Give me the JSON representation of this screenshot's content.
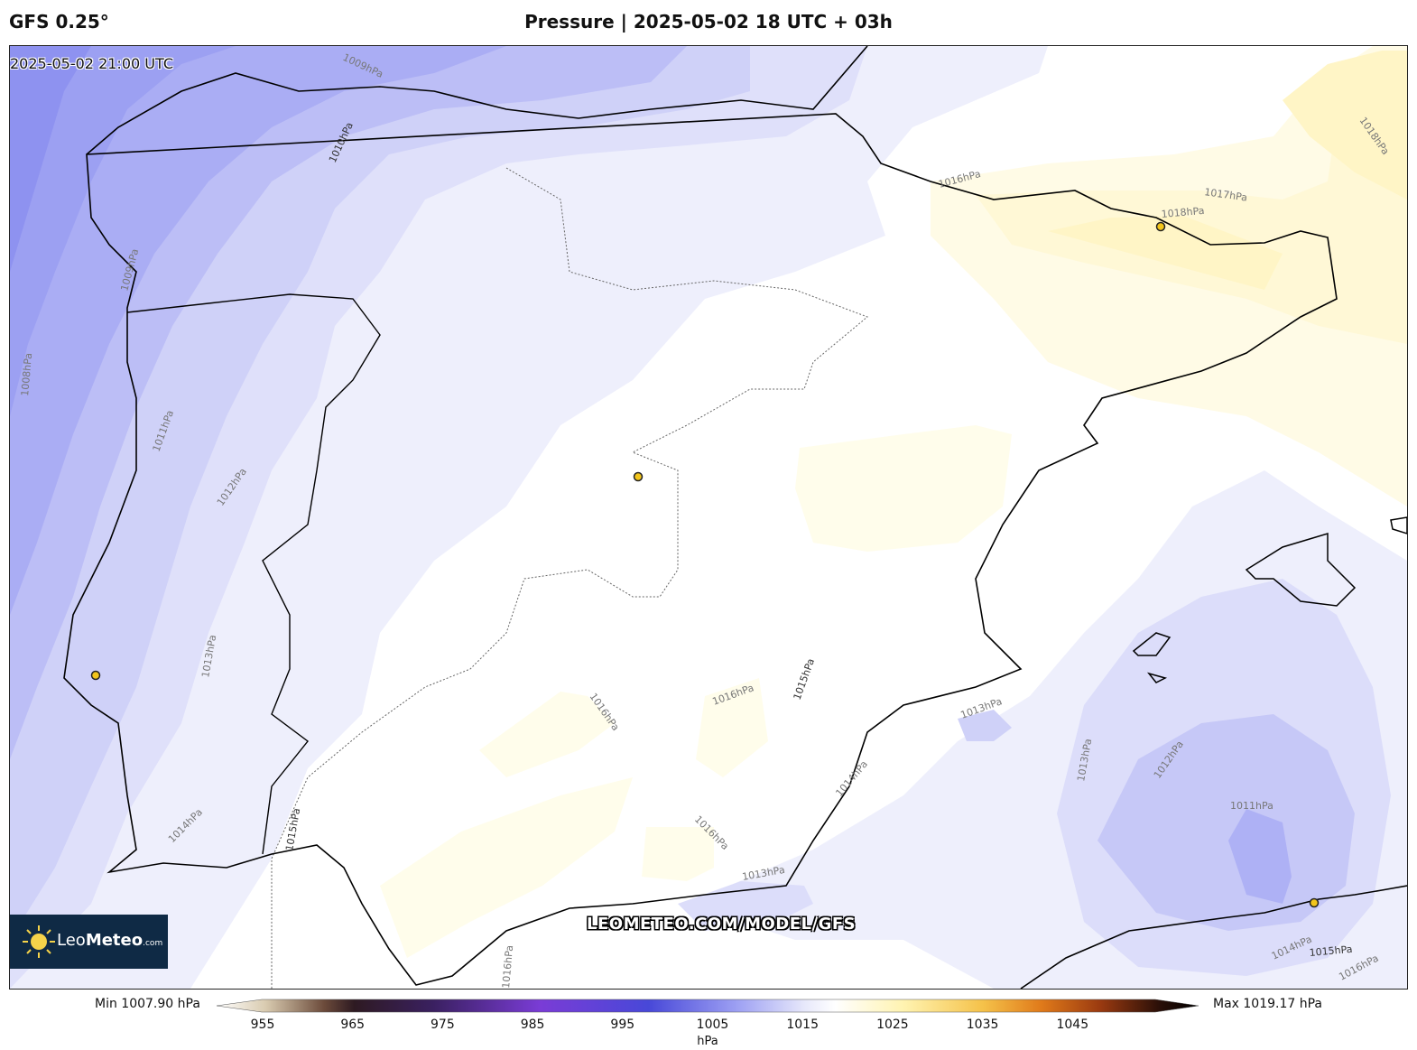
{
  "header": {
    "model": "GFS 0.25°",
    "title": "Pressure | 2025-05-02 18 UTC + 03h"
  },
  "map": {
    "valid_time": "2025-05-02 21:00 UTC",
    "watermark": "LEOMETEO.COM/MODEL/GFS",
    "logo": {
      "brand_light": "Leo",
      "brand_bold": "Meteo",
      "suffix": ".com"
    },
    "isobar_labels": {
      "l1008": "1008hPa",
      "l1009a": "1009hPa",
      "l1009b": "1009hPa",
      "l1010": "1010hPa",
      "l1011a": "1011hPa",
      "l1011b": "1011hPa",
      "l1012a": "1012hPa",
      "l1012b": "1012hPa",
      "l1013a": "1013hPa",
      "l1013b": "1013hPa",
      "l1013c": "1013hPa",
      "l1013d": "1013hPa",
      "l1014a": "1014hPa",
      "l1014b": "1014hPa",
      "l1014c": "1014hPa",
      "l1015a": "1015hPa",
      "l1015b": "1015hPa",
      "l1015c": "1015hPa",
      "l1016a": "1016hPa",
      "l1016b": "1016hPa",
      "l1016c": "1016hPa",
      "l1016d": "1016hPa",
      "l1016e": "1016hPa",
      "l1016f": "1016hPa",
      "l1017": "1017hPa",
      "l1018a": "1018hPa",
      "l1018b": "1018hPa"
    }
  },
  "colorbar": {
    "min_label": "Min 1007.90 hPa",
    "max_label": "Max 1019.17 hPa",
    "ticks": [
      "955",
      "965",
      "975",
      "985",
      "995",
      "1005",
      "1015",
      "1025",
      "1035",
      "1045"
    ],
    "unit": "hPa",
    "range": [
      950,
      1055
    ]
  },
  "colors": {
    "very_low": "#8c8ff0",
    "low": "#a3a6f3",
    "mid_low": "#c3c5f6",
    "near_normal": "#e6e7fb",
    "normal": "#ffffff",
    "high": "#fffbe0",
    "highest": "#fff6c8",
    "coast": "#000000",
    "city_marker": "#f2c51c"
  }
}
